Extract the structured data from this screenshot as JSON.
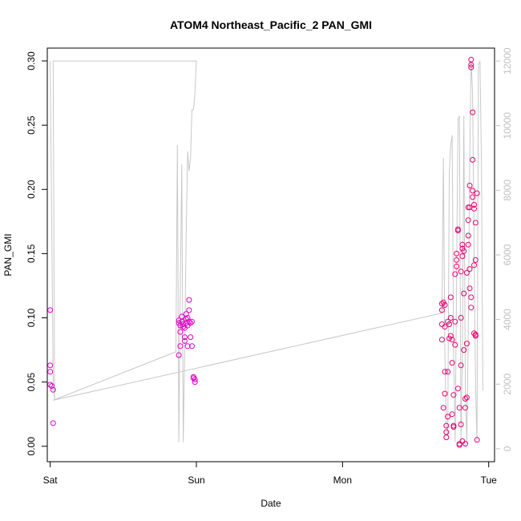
{
  "chart_data": {
    "type": "scatter",
    "title": "ATOM4 Northeast_Pacific_2 PAN_GMI",
    "xlabel": "Date",
    "ylabel": "PAN_GMI",
    "x_categories": [
      "Sat",
      "Sun",
      "Mon",
      "Tue"
    ],
    "xlim": [
      -0.02,
      3.04
    ],
    "ylim": [
      -0.012,
      0.31
    ],
    "y_ticks": [
      "0.00",
      "0.05",
      "0.10",
      "0.15",
      "0.20",
      "0.25",
      "0.30"
    ],
    "y2lim": [
      -400,
      12400
    ],
    "y2_ticks": [
      "0",
      "2000",
      "4000",
      "6000",
      "8000",
      "10000",
      "12000"
    ],
    "grid": false,
    "colors": {
      "points_early": "#e000c8",
      "points_late": "#e8006e",
      "altitude_line": "#c8c8c8",
      "axis": "#000000",
      "right_axis": "#c0c0c0"
    },
    "series": [
      {
        "values": [
          {
            "x": 0.0,
            "y": 0.106
          },
          {
            "x": 0.0,
            "y": 0.063
          },
          {
            "x": 0.0,
            "y": 0.058
          },
          {
            "x": 0.0,
            "y": 0.048
          },
          {
            "x": 0.01,
            "y": 0.047
          },
          {
            "x": 0.02,
            "y": 0.044
          },
          {
            "x": 0.02,
            "y": 0.018
          },
          {
            "x": 0.88,
            "y": 0.098
          },
          {
            "x": 0.88,
            "y": 0.096
          },
          {
            "x": 0.88,
            "y": 0.071
          },
          {
            "x": 0.89,
            "y": 0.094
          },
          {
            "x": 0.89,
            "y": 0.089
          },
          {
            "x": 0.89,
            "y": 0.078
          },
          {
            "x": 0.9,
            "y": 0.101
          },
          {
            "x": 0.9,
            "y": 0.097
          },
          {
            "x": 0.91,
            "y": 0.095
          },
          {
            "x": 0.91,
            "y": 0.093
          },
          {
            "x": 0.92,
            "y": 0.092
          },
          {
            "x": 0.92,
            "y": 0.085
          },
          {
            "x": 0.92,
            "y": 0.082
          },
          {
            "x": 0.93,
            "y": 0.103
          },
          {
            "x": 0.93,
            "y": 0.099
          },
          {
            "x": 0.93,
            "y": 0.096
          },
          {
            "x": 0.94,
            "y": 0.094
          },
          {
            "x": 0.94,
            "y": 0.078
          },
          {
            "x": 0.94,
            "y": 0.1
          },
          {
            "x": 0.95,
            "y": 0.106
          },
          {
            "x": 0.95,
            "y": 0.114
          },
          {
            "x": 0.95,
            "y": 0.097
          },
          {
            "x": 0.96,
            "y": 0.096
          },
          {
            "x": 0.96,
            "y": 0.085
          },
          {
            "x": 0.97,
            "y": 0.097
          },
          {
            "x": 0.97,
            "y": 0.078
          },
          {
            "x": 0.98,
            "y": 0.054
          },
          {
            "x": 0.98,
            "y": 0.053
          },
          {
            "x": 0.99,
            "y": 0.052
          },
          {
            "x": 0.99,
            "y": 0.05
          }
        ]
      },
      {
        "values": [
          {
            "x": 2.68,
            "y": 0.111
          },
          {
            "x": 2.68,
            "y": 0.106
          },
          {
            "x": 2.68,
            "y": 0.095
          },
          {
            "x": 2.68,
            "y": 0.083
          },
          {
            "x": 2.69,
            "y": 0.03
          },
          {
            "x": 2.69,
            "y": 0.112
          },
          {
            "x": 2.7,
            "y": 0.11
          },
          {
            "x": 2.7,
            "y": 0.093
          },
          {
            "x": 2.7,
            "y": 0.058
          },
          {
            "x": 2.7,
            "y": 0.041
          },
          {
            "x": 2.71,
            "y": 0.016
          },
          {
            "x": 2.71,
            "y": 0.011
          },
          {
            "x": 2.71,
            "y": 0.007
          },
          {
            "x": 2.72,
            "y": 0.097
          },
          {
            "x": 2.72,
            "y": 0.058
          },
          {
            "x": 2.72,
            "y": 0.023
          },
          {
            "x": 2.73,
            "y": 0.095
          },
          {
            "x": 2.73,
            "y": 0.084
          },
          {
            "x": 2.74,
            "y": 0.116
          },
          {
            "x": 2.74,
            "y": 0.1
          },
          {
            "x": 2.74,
            "y": 0.086
          },
          {
            "x": 2.75,
            "y": 0.083
          },
          {
            "x": 2.75,
            "y": 0.065
          },
          {
            "x": 2.75,
            "y": 0.025
          },
          {
            "x": 2.76,
            "y": 0.016
          },
          {
            "x": 2.76,
            "y": 0.015
          },
          {
            "x": 2.76,
            "y": 0.04
          },
          {
            "x": 2.77,
            "y": 0.097
          },
          {
            "x": 2.77,
            "y": 0.079
          },
          {
            "x": 2.77,
            "y": 0.134
          },
          {
            "x": 2.78,
            "y": 0.14
          },
          {
            "x": 2.78,
            "y": 0.145
          },
          {
            "x": 2.78,
            "y": 0.15
          },
          {
            "x": 2.79,
            "y": 0.169
          },
          {
            "x": 2.79,
            "y": 0.168
          },
          {
            "x": 2.79,
            "y": 0.045
          },
          {
            "x": 2.8,
            "y": 0.03
          },
          {
            "x": 2.8,
            "y": 0.002
          },
          {
            "x": 2.8,
            "y": 0.001
          },
          {
            "x": 2.81,
            "y": 0.017
          },
          {
            "x": 2.81,
            "y": 0.063
          },
          {
            "x": 2.81,
            "y": 0.1
          },
          {
            "x": 2.81,
            "y": 0.136
          },
          {
            "x": 2.82,
            "y": 0.157
          },
          {
            "x": 2.82,
            "y": 0.154
          },
          {
            "x": 2.82,
            "y": 0.148
          },
          {
            "x": 2.82,
            "y": 0.004
          },
          {
            "x": 2.83,
            "y": 0.119
          },
          {
            "x": 2.83,
            "y": 0.075
          },
          {
            "x": 2.83,
            "y": 0.152
          },
          {
            "x": 2.84,
            "y": 0.037
          },
          {
            "x": 2.84,
            "y": 0.03
          },
          {
            "x": 2.84,
            "y": 0.002
          },
          {
            "x": 2.85,
            "y": 0.038
          },
          {
            "x": 2.85,
            "y": 0.08
          },
          {
            "x": 2.85,
            "y": 0.135
          },
          {
            "x": 2.86,
            "y": 0.157
          },
          {
            "x": 2.86,
            "y": 0.164
          },
          {
            "x": 2.86,
            "y": 0.176
          },
          {
            "x": 2.86,
            "y": 0.186
          },
          {
            "x": 2.87,
            "y": 0.186
          },
          {
            "x": 2.87,
            "y": 0.203
          },
          {
            "x": 2.87,
            "y": 0.138
          },
          {
            "x": 2.87,
            "y": 0.123
          },
          {
            "x": 2.88,
            "y": 0.116
          },
          {
            "x": 2.88,
            "y": 0.108
          },
          {
            "x": 2.88,
            "y": 0.301
          },
          {
            "x": 2.88,
            "y": 0.297
          },
          {
            "x": 2.88,
            "y": 0.295
          },
          {
            "x": 2.89,
            "y": 0.26
          },
          {
            "x": 2.89,
            "y": 0.223
          },
          {
            "x": 2.89,
            "y": 0.199
          },
          {
            "x": 2.89,
            "y": 0.194
          },
          {
            "x": 2.9,
            "y": 0.188
          },
          {
            "x": 2.9,
            "y": 0.185
          },
          {
            "x": 2.9,
            "y": 0.141
          },
          {
            "x": 2.9,
            "y": 0.088
          },
          {
            "x": 2.91,
            "y": 0.087
          },
          {
            "x": 2.91,
            "y": 0.086
          },
          {
            "x": 2.91,
            "y": 0.145
          },
          {
            "x": 2.91,
            "y": 0.174
          },
          {
            "x": 2.92,
            "y": 0.197
          },
          {
            "x": 2.92,
            "y": 0.005
          }
        ]
      }
    ],
    "altitude_line": {
      "values": [
        [
          0.0,
          12000
        ],
        [
          0.01,
          7000
        ],
        [
          0.02,
          2200
        ],
        [
          0.03,
          1500
        ],
        [
          0.02,
          12000
        ],
        [
          0.99,
          12000
        ],
        [
          1.0,
          12000
        ],
        [
          0.99,
          11000
        ],
        [
          0.98,
          10500
        ],
        [
          0.97,
          10500
        ],
        [
          0.96,
          9000
        ],
        [
          0.95,
          8600
        ],
        [
          0.94,
          9200
        ],
        [
          0.93,
          6500
        ],
        [
          0.92,
          3000
        ],
        [
          0.91,
          200
        ],
        [
          0.9,
          8800
        ],
        [
          0.89,
          5000
        ],
        [
          0.88,
          200
        ],
        [
          0.87,
          9400
        ],
        [
          0.86,
          3000
        ],
        [
          0.02,
          1500
        ],
        [
          2.68,
          4200
        ],
        [
          2.69,
          9000
        ],
        [
          2.7,
          3000
        ],
        [
          2.71,
          800
        ],
        [
          2.72,
          400
        ],
        [
          2.73,
          8500
        ],
        [
          2.74,
          9400
        ],
        [
          2.75,
          9700
        ],
        [
          2.76,
          3000
        ],
        [
          2.77,
          200
        ],
        [
          2.78,
          5000
        ],
        [
          2.79,
          10200
        ],
        [
          2.8,
          10300
        ],
        [
          2.81,
          200
        ],
        [
          2.82,
          3000
        ],
        [
          2.83,
          10300
        ],
        [
          2.84,
          2000
        ],
        [
          2.85,
          200
        ],
        [
          2.86,
          3500
        ],
        [
          2.87,
          9000
        ],
        [
          2.88,
          12000
        ],
        [
          2.89,
          11000
        ],
        [
          2.9,
          6000
        ],
        [
          2.91,
          2000
        ],
        [
          2.92,
          200
        ],
        [
          2.93,
          11900
        ],
        [
          2.94,
          12000
        ],
        [
          2.95,
          9000
        ],
        [
          2.96,
          1800
        ]
      ]
    }
  }
}
